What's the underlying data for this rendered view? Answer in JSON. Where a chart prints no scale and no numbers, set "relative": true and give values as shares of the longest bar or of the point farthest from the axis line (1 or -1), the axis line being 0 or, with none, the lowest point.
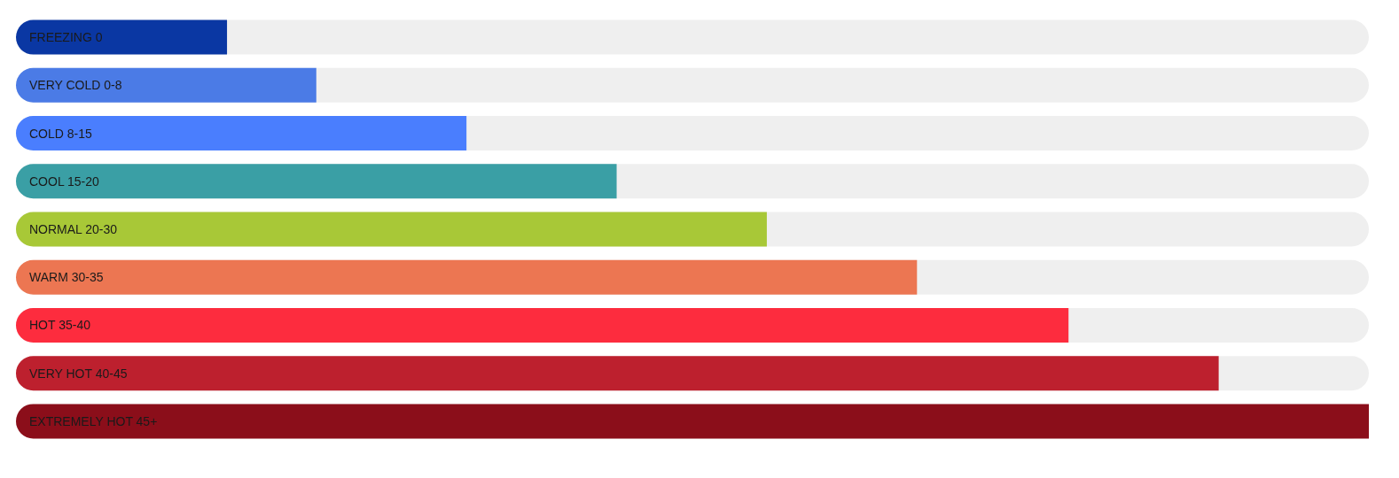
{
  "chart_data": {
    "type": "bar",
    "orientation": "horizontal",
    "relative": true,
    "categories": [
      "FREEZING 0",
      "VERY COLD 0-8",
      "COLD 8-15",
      "COOL 15-20",
      "NORMAL 20-30",
      "WARM 30-35",
      "HOT 35-40",
      "VERY HOT 40-45",
      "EXTREMELY HOT 45+"
    ],
    "values": [
      0.156,
      0.222,
      0.333,
      0.444,
      0.555,
      0.666,
      0.778,
      0.889,
      1
    ],
    "colors": [
      "#0a37a3",
      "#4b7be6",
      "#4a7efe",
      "#3a9fa5",
      "#a8c837",
      "#ec7652",
      "#fd2c3e",
      "#bd202e",
      "#8b0e1a"
    ]
  }
}
